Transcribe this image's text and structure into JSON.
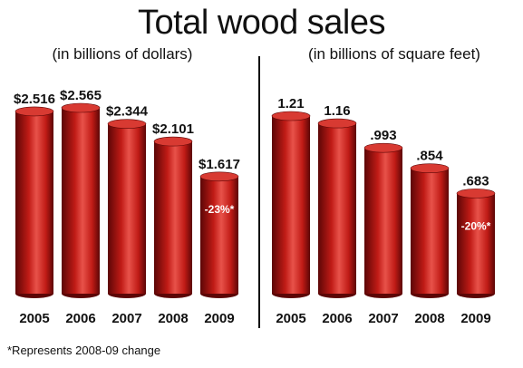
{
  "title": "Total wood sales",
  "footnote": "*Represents 2008-09 change",
  "colors": {
    "bar_dark": "#5c0606",
    "bar_mid": "#c01b16",
    "bar_light": "#e8524a",
    "top_cap": "#d83a32"
  },
  "chart_data": [
    {
      "type": "bar",
      "subtitle": "(in billions of dollars)",
      "categories": [
        "2005",
        "2006",
        "2007",
        "2008",
        "2009"
      ],
      "values": [
        2.516,
        2.565,
        2.344,
        2.101,
        1.617
      ],
      "value_labels": [
        "$2.516",
        "$2.565",
        "$2.344",
        "$2.101",
        "$1.617"
      ],
      "change_label": "-23%*",
      "ylim": [
        0,
        2.565
      ]
    },
    {
      "type": "bar",
      "subtitle": "(in billions of square feet)",
      "categories": [
        "2005",
        "2006",
        "2007",
        "2008",
        "2009"
      ],
      "values": [
        1.21,
        1.16,
        0.993,
        0.854,
        0.683
      ],
      "value_labels": [
        "1.21",
        "1.16",
        ".993",
        ".854",
        ".683"
      ],
      "change_label": "-20%*",
      "ylim": [
        0,
        1.21
      ]
    }
  ]
}
